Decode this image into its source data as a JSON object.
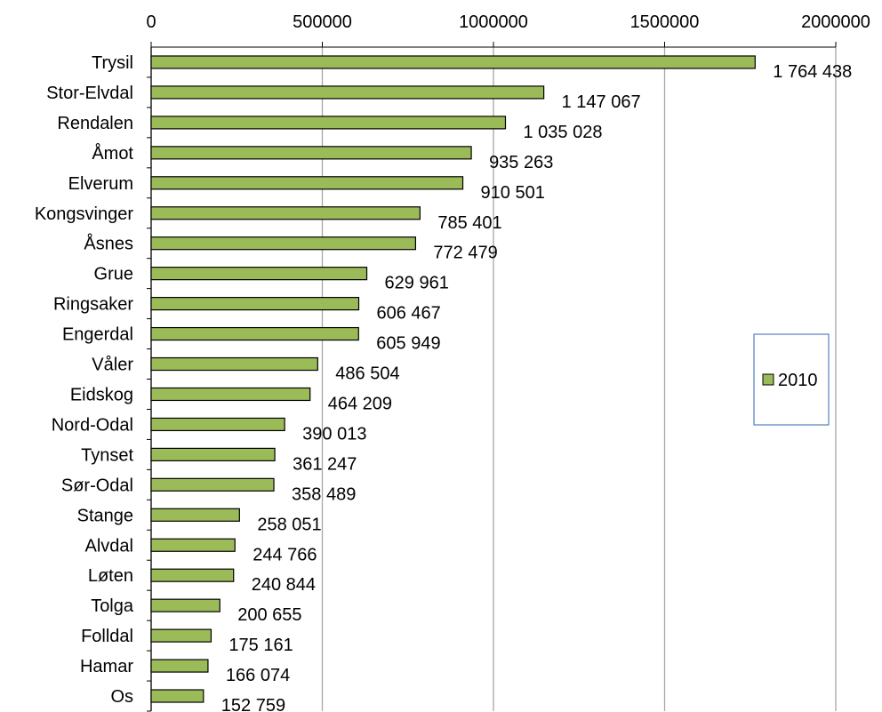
{
  "chart_data": {
    "type": "bar",
    "orientation": "horizontal",
    "categories": [
      "Trysil",
      "Stor-Elvdal",
      "Rendalen",
      "Åmot",
      "Elverum",
      "Kongsvinger",
      "Åsnes",
      "Grue",
      "Ringsaker",
      "Engerdal",
      "Våler",
      "Eidskog",
      "Nord-Odal",
      "Tynset",
      "Sør-Odal",
      "Stange",
      "Alvdal",
      "Løten",
      "Tolga",
      "Folldal",
      "Hamar",
      "Os"
    ],
    "series": [
      {
        "name": "2010",
        "values": [
          1764438,
          1147067,
          1035028,
          935263,
          910501,
          785401,
          772479,
          629961,
          606467,
          605949,
          486504,
          464209,
          390013,
          361247,
          358489,
          258051,
          244766,
          240844,
          200655,
          175161,
          166074,
          152759
        ],
        "data_labels": [
          "1 764 438",
          "1 147 067",
          "1 035 028",
          "935 263",
          "910 501",
          "785 401",
          "772 479",
          "629 961",
          "606 467",
          "605 949",
          "486 504",
          "464 209",
          "390 013",
          "361 247",
          "358 489",
          "258 051",
          "244 766",
          "240 844",
          "200 655",
          "175 161",
          "166 074",
          "152 759"
        ],
        "color": "#9bbb59"
      }
    ],
    "xlim": [
      0,
      2000000
    ],
    "xticks": [
      0,
      500000,
      1000000,
      1500000,
      2000000
    ],
    "xtick_labels": [
      "0",
      "500000",
      "1000000",
      "1500000",
      "2000000"
    ],
    "x_axis_position": "top",
    "grid": true,
    "legend": {
      "placement": "right",
      "entries": [
        "2010"
      ]
    },
    "colors": {
      "bar": "#9bbb59",
      "bar_edge": "#000000",
      "grid": "#a6a6a6",
      "legend_border": "#4f81bd"
    },
    "title": "",
    "xlabel": "",
    "ylabel": ""
  }
}
